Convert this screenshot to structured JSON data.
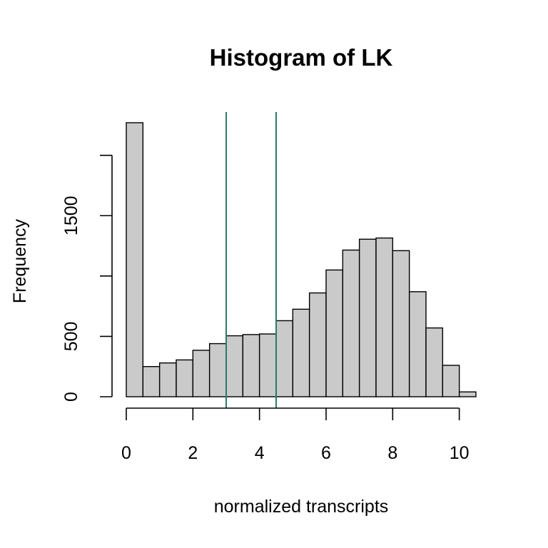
{
  "chart_data": {
    "type": "bar",
    "title": "Histogram of LK",
    "xlabel": "normalized transcripts",
    "ylabel": "Frequency",
    "bin_width": 0.5,
    "bins": [
      {
        "start": 0.0,
        "count": 2270
      },
      {
        "start": 0.5,
        "count": 250
      },
      {
        "start": 1.0,
        "count": 280
      },
      {
        "start": 1.5,
        "count": 305
      },
      {
        "start": 2.0,
        "count": 385
      },
      {
        "start": 2.5,
        "count": 440
      },
      {
        "start": 3.0,
        "count": 505
      },
      {
        "start": 3.5,
        "count": 515
      },
      {
        "start": 4.0,
        "count": 520
      },
      {
        "start": 4.5,
        "count": 630
      },
      {
        "start": 5.0,
        "count": 725
      },
      {
        "start": 5.5,
        "count": 860
      },
      {
        "start": 6.0,
        "count": 1050
      },
      {
        "start": 6.5,
        "count": 1215
      },
      {
        "start": 7.0,
        "count": 1305
      },
      {
        "start": 7.5,
        "count": 1315
      },
      {
        "start": 8.0,
        "count": 1210
      },
      {
        "start": 8.5,
        "count": 870
      },
      {
        "start": 9.0,
        "count": 570
      },
      {
        "start": 9.5,
        "count": 260
      },
      {
        "start": 10.0,
        "count": 40
      }
    ],
    "x_ticks": [
      {
        "value": 0,
        "label": "0"
      },
      {
        "value": 2,
        "label": "2"
      },
      {
        "value": 4,
        "label": "4"
      },
      {
        "value": 6,
        "label": "6"
      },
      {
        "value": 8,
        "label": "8"
      },
      {
        "value": 10,
        "label": "10"
      }
    ],
    "y_ticks": [
      {
        "value": 0,
        "label": "0"
      },
      {
        "value": 500,
        "label": "500"
      },
      {
        "value": 1000,
        "label": ""
      },
      {
        "value": 1500,
        "label": "1500"
      },
      {
        "value": 2000,
        "label": ""
      }
    ],
    "xlim": [
      0,
      10.5
    ],
    "ylim": [
      0,
      2270
    ],
    "vertical_lines": [
      3.0,
      4.5
    ],
    "colors": {
      "bar_fill": "#cacaca",
      "bar_stroke": "#000000",
      "vline": "#2a7a6e"
    },
    "grid": false
  }
}
